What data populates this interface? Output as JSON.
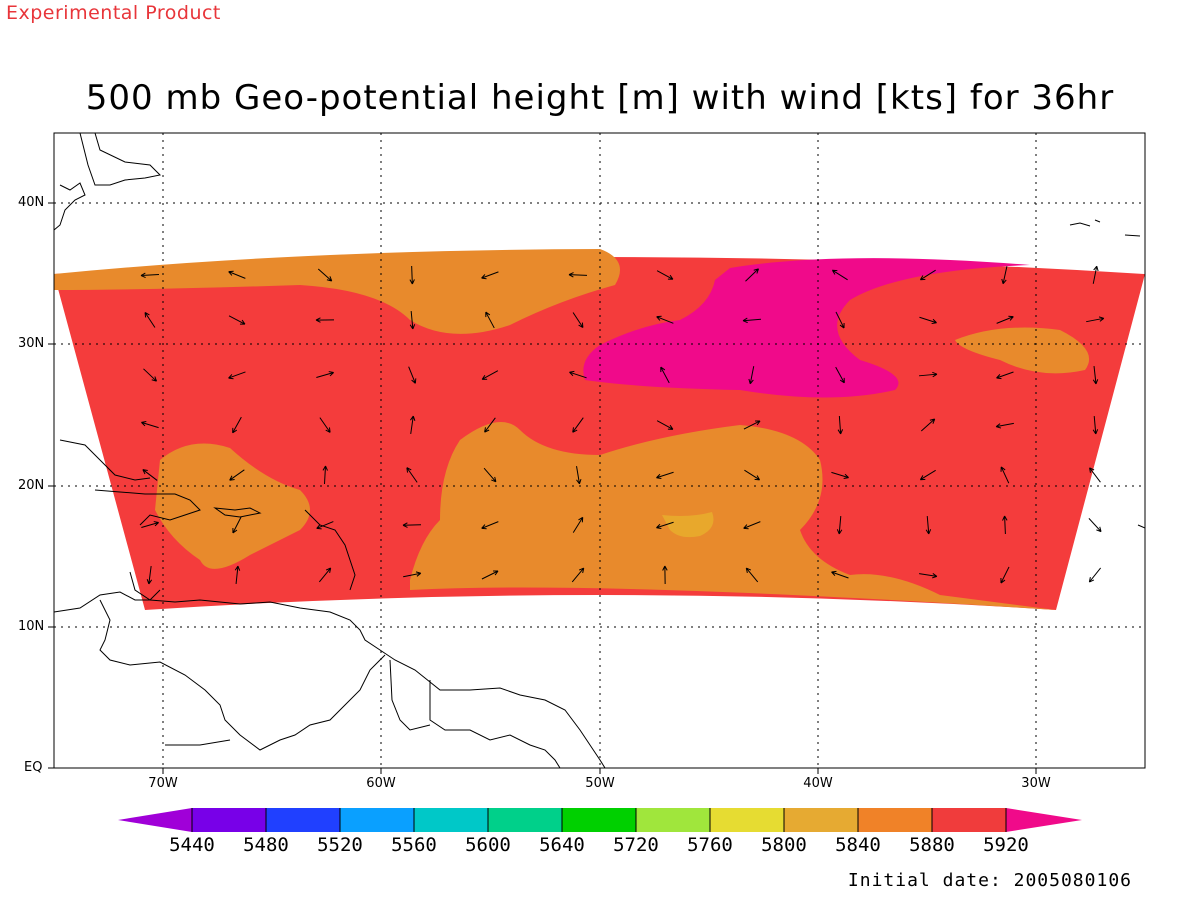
{
  "header": {
    "experimental_label": "Experimental Product",
    "title": "500 mb Geo-potential height [m] with wind [kts] for 36hr"
  },
  "map": {
    "lon_range": [
      -75,
      -25
    ],
    "lat_range": [
      0,
      45
    ],
    "lat_ticks": [
      {
        "value": 40,
        "label": "40N"
      },
      {
        "value": 30,
        "label": "30N"
      },
      {
        "value": 20,
        "label": "20N"
      },
      {
        "value": 10,
        "label": "10N"
      },
      {
        "value": 0,
        "label": "EQ"
      }
    ],
    "lon_ticks": [
      {
        "value": -70,
        "label": "70W"
      },
      {
        "value": -60,
        "label": "60W"
      },
      {
        "value": -50,
        "label": "50W"
      },
      {
        "value": -40,
        "label": "40W"
      },
      {
        "value": -30,
        "label": "30W"
      }
    ],
    "grid": true,
    "field_colors": {
      "5840": "#e88a2c",
      "5880": "#f43c3c",
      "5920": "#f00a8a",
      "5800": "#e8a82c"
    }
  },
  "legend": {
    "levels": [
      "5440",
      "5480",
      "5520",
      "5560",
      "5600",
      "5640",
      "5720",
      "5760",
      "5800",
      "5840",
      "5880",
      "5920"
    ],
    "colors": [
      "#a000d8",
      "#7800e8",
      "#2040ff",
      "#0aa0ff",
      "#00c8c8",
      "#00d08a",
      "#00d000",
      "#a0e63c",
      "#e6dc32",
      "#e6aa32",
      "#f08228",
      "#f03c3c",
      "#f00a8a"
    ]
  },
  "footer": {
    "initial_date": "Initial date: 2005080106"
  }
}
